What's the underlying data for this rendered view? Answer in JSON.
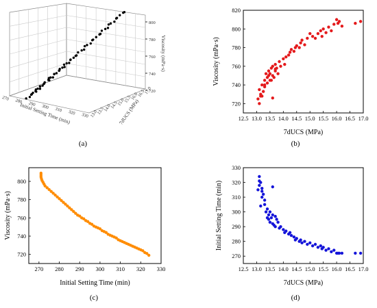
{
  "panels": {
    "a": "(a)",
    "b": "(b)",
    "c": "(c)",
    "d": "(d)"
  },
  "chart_data": [
    {
      "id": "a",
      "type": "scatter",
      "title": "",
      "xlabel": "Initial Setting Time (min)",
      "ylabel": "7dUCS (MPa)",
      "zlabel": "Viscosity (mPa·s)",
      "zticks": [
        "720",
        "740",
        "760",
        "780",
        "800"
      ],
      "xticks": [
        "270",
        "280",
        "290",
        "300",
        "310",
        "320",
        "330"
      ],
      "yticks": [
        "13.0",
        "13.5",
        "14.0",
        "14.5",
        "15.0",
        "15.5",
        "16.0",
        "16.5",
        "17.0"
      ],
      "color": "#000000"
    },
    {
      "id": "b",
      "type": "scatter",
      "title": "",
      "xlabel": "7dUCS (MPa)",
      "ylabel": "Viscosity (mPa·s)",
      "xlim": [
        12.5,
        17.0
      ],
      "ylim": [
        710,
        820
      ],
      "xticks": [
        "12.5",
        "13.0",
        "13.5",
        "14.0",
        "14.5",
        "15.0",
        "15.5",
        "16.0",
        "16.5",
        "17.0"
      ],
      "yticks": [
        "720",
        "740",
        "760",
        "780",
        "800",
        "820"
      ],
      "color": "#e41a1c",
      "x": [
        13.05,
        13.1,
        13.1,
        13.15,
        13.2,
        13.2,
        13.25,
        13.3,
        13.3,
        13.35,
        13.4,
        13.4,
        13.45,
        13.5,
        13.5,
        13.55,
        13.6,
        13.6,
        13.65,
        13.7,
        13.7,
        13.75,
        13.8,
        13.85,
        13.9,
        14.0,
        14.05,
        14.1,
        14.2,
        14.25,
        14.3,
        14.4,
        14.45,
        14.5,
        14.6,
        14.65,
        14.7,
        14.8,
        14.9,
        15.0,
        15.1,
        15.2,
        15.3,
        15.4,
        15.45,
        15.5,
        15.6,
        15.7,
        15.8,
        15.9,
        16.0,
        16.05,
        16.1,
        16.2,
        16.7,
        16.9,
        13.15,
        13.6,
        13.45,
        13.3,
        13.55,
        13.7
      ],
      "y": [
        725,
        720,
        735,
        730,
        728,
        740,
        733,
        745,
        738,
        752,
        748,
        742,
        755,
        745,
        752,
        758,
        750,
        760,
        748,
        755,
        762,
        758,
        752,
        765,
        760,
        768,
        762,
        770,
        772,
        775,
        778,
        776,
        780,
        782,
        780,
        785,
        788,
        783,
        790,
        795,
        792,
        790,
        795,
        798,
        792,
        800,
        796,
        802,
        798,
        805,
        810,
        806,
        808,
        803,
        806,
        808,
        728,
        726,
        750,
        740,
        745,
        757
      ]
    },
    {
      "id": "c",
      "type": "scatter",
      "title": "",
      "xlabel": "Initial Setting Time (min)",
      "ylabel": "Viscosity (mPa·s)",
      "xlim": [
        265,
        330
      ],
      "ylim": [
        710,
        815
      ],
      "xticks": [
        "270",
        "280",
        "290",
        "300",
        "310",
        "320",
        "330"
      ],
      "yticks": [
        "720",
        "740",
        "760",
        "780",
        "800"
      ],
      "color": "#ff8c00",
      "x": [
        271,
        271,
        271,
        271.2,
        271.5,
        272,
        272.5,
        273,
        274,
        275,
        276,
        277,
        278,
        279,
        280,
        281,
        282,
        283,
        284,
        285,
        286,
        287,
        288,
        289,
        290,
        291,
        292,
        293,
        294,
        295,
        296,
        297,
        298,
        299,
        300,
        301,
        302,
        303,
        304,
        305,
        306,
        307,
        308,
        309,
        310,
        311,
        312,
        313,
        314,
        315,
        316,
        317,
        318,
        319,
        320,
        321,
        322,
        323,
        324
      ],
      "y": [
        809,
        807,
        805,
        803,
        801,
        799,
        797,
        795,
        793,
        791,
        789,
        787,
        785,
        783,
        781,
        779,
        777,
        775,
        773,
        771,
        769,
        767,
        765,
        763,
        762,
        760,
        759,
        757,
        756,
        754,
        753,
        751,
        750,
        749,
        748,
        746,
        745,
        744,
        742,
        741,
        740,
        739,
        738,
        736,
        735,
        734,
        733,
        732,
        731,
        730,
        729,
        728,
        727,
        726,
        725,
        724,
        722,
        721,
        719
      ]
    },
    {
      "id": "d",
      "type": "scatter",
      "title": "",
      "xlabel": "7dUCS (MPa)",
      "ylabel": "Initial Setting Time (min)",
      "xlim": [
        12.5,
        17.0
      ],
      "ylim": [
        265,
        330
      ],
      "xticks": [
        "12.5",
        "13.0",
        "13.5",
        "14.0",
        "14.5",
        "15.0",
        "15.5",
        "16.0",
        "16.5",
        "17.0"
      ],
      "yticks": [
        "270",
        "280",
        "290",
        "300",
        "310",
        "320",
        "330"
      ],
      "color": "#1515d9",
      "x": [
        13.05,
        13.1,
        13.1,
        13.15,
        13.2,
        13.2,
        13.25,
        13.3,
        13.3,
        13.35,
        13.4,
        13.4,
        13.45,
        13.5,
        13.5,
        13.55,
        13.6,
        13.6,
        13.65,
        13.7,
        13.7,
        13.75,
        13.8,
        13.85,
        13.9,
        14.0,
        14.05,
        14.1,
        14.2,
        14.25,
        14.3,
        14.4,
        14.45,
        14.5,
        14.6,
        14.65,
        14.7,
        14.8,
        14.9,
        15.0,
        15.1,
        15.2,
        15.3,
        15.4,
        15.45,
        15.5,
        15.6,
        15.7,
        15.8,
        15.9,
        16.0,
        16.05,
        16.1,
        16.2,
        16.7,
        16.9,
        13.15,
        13.6,
        13.1,
        13.2,
        13.45
      ],
      "y": [
        315,
        324,
        318,
        320,
        310,
        316,
        312,
        305,
        308,
        300,
        302,
        296,
        298,
        293,
        300,
        296,
        292,
        298,
        291,
        297,
        290,
        295,
        293,
        289,
        290,
        288,
        286,
        287,
        285,
        286,
        284,
        283,
        281,
        282,
        280,
        281,
        279,
        280,
        278,
        279,
        277,
        278,
        276,
        277,
        275,
        276,
        274,
        275,
        273,
        274,
        272,
        272,
        272,
        272,
        272,
        272,
        304,
        317,
        321,
        314,
        295
      ]
    }
  ]
}
